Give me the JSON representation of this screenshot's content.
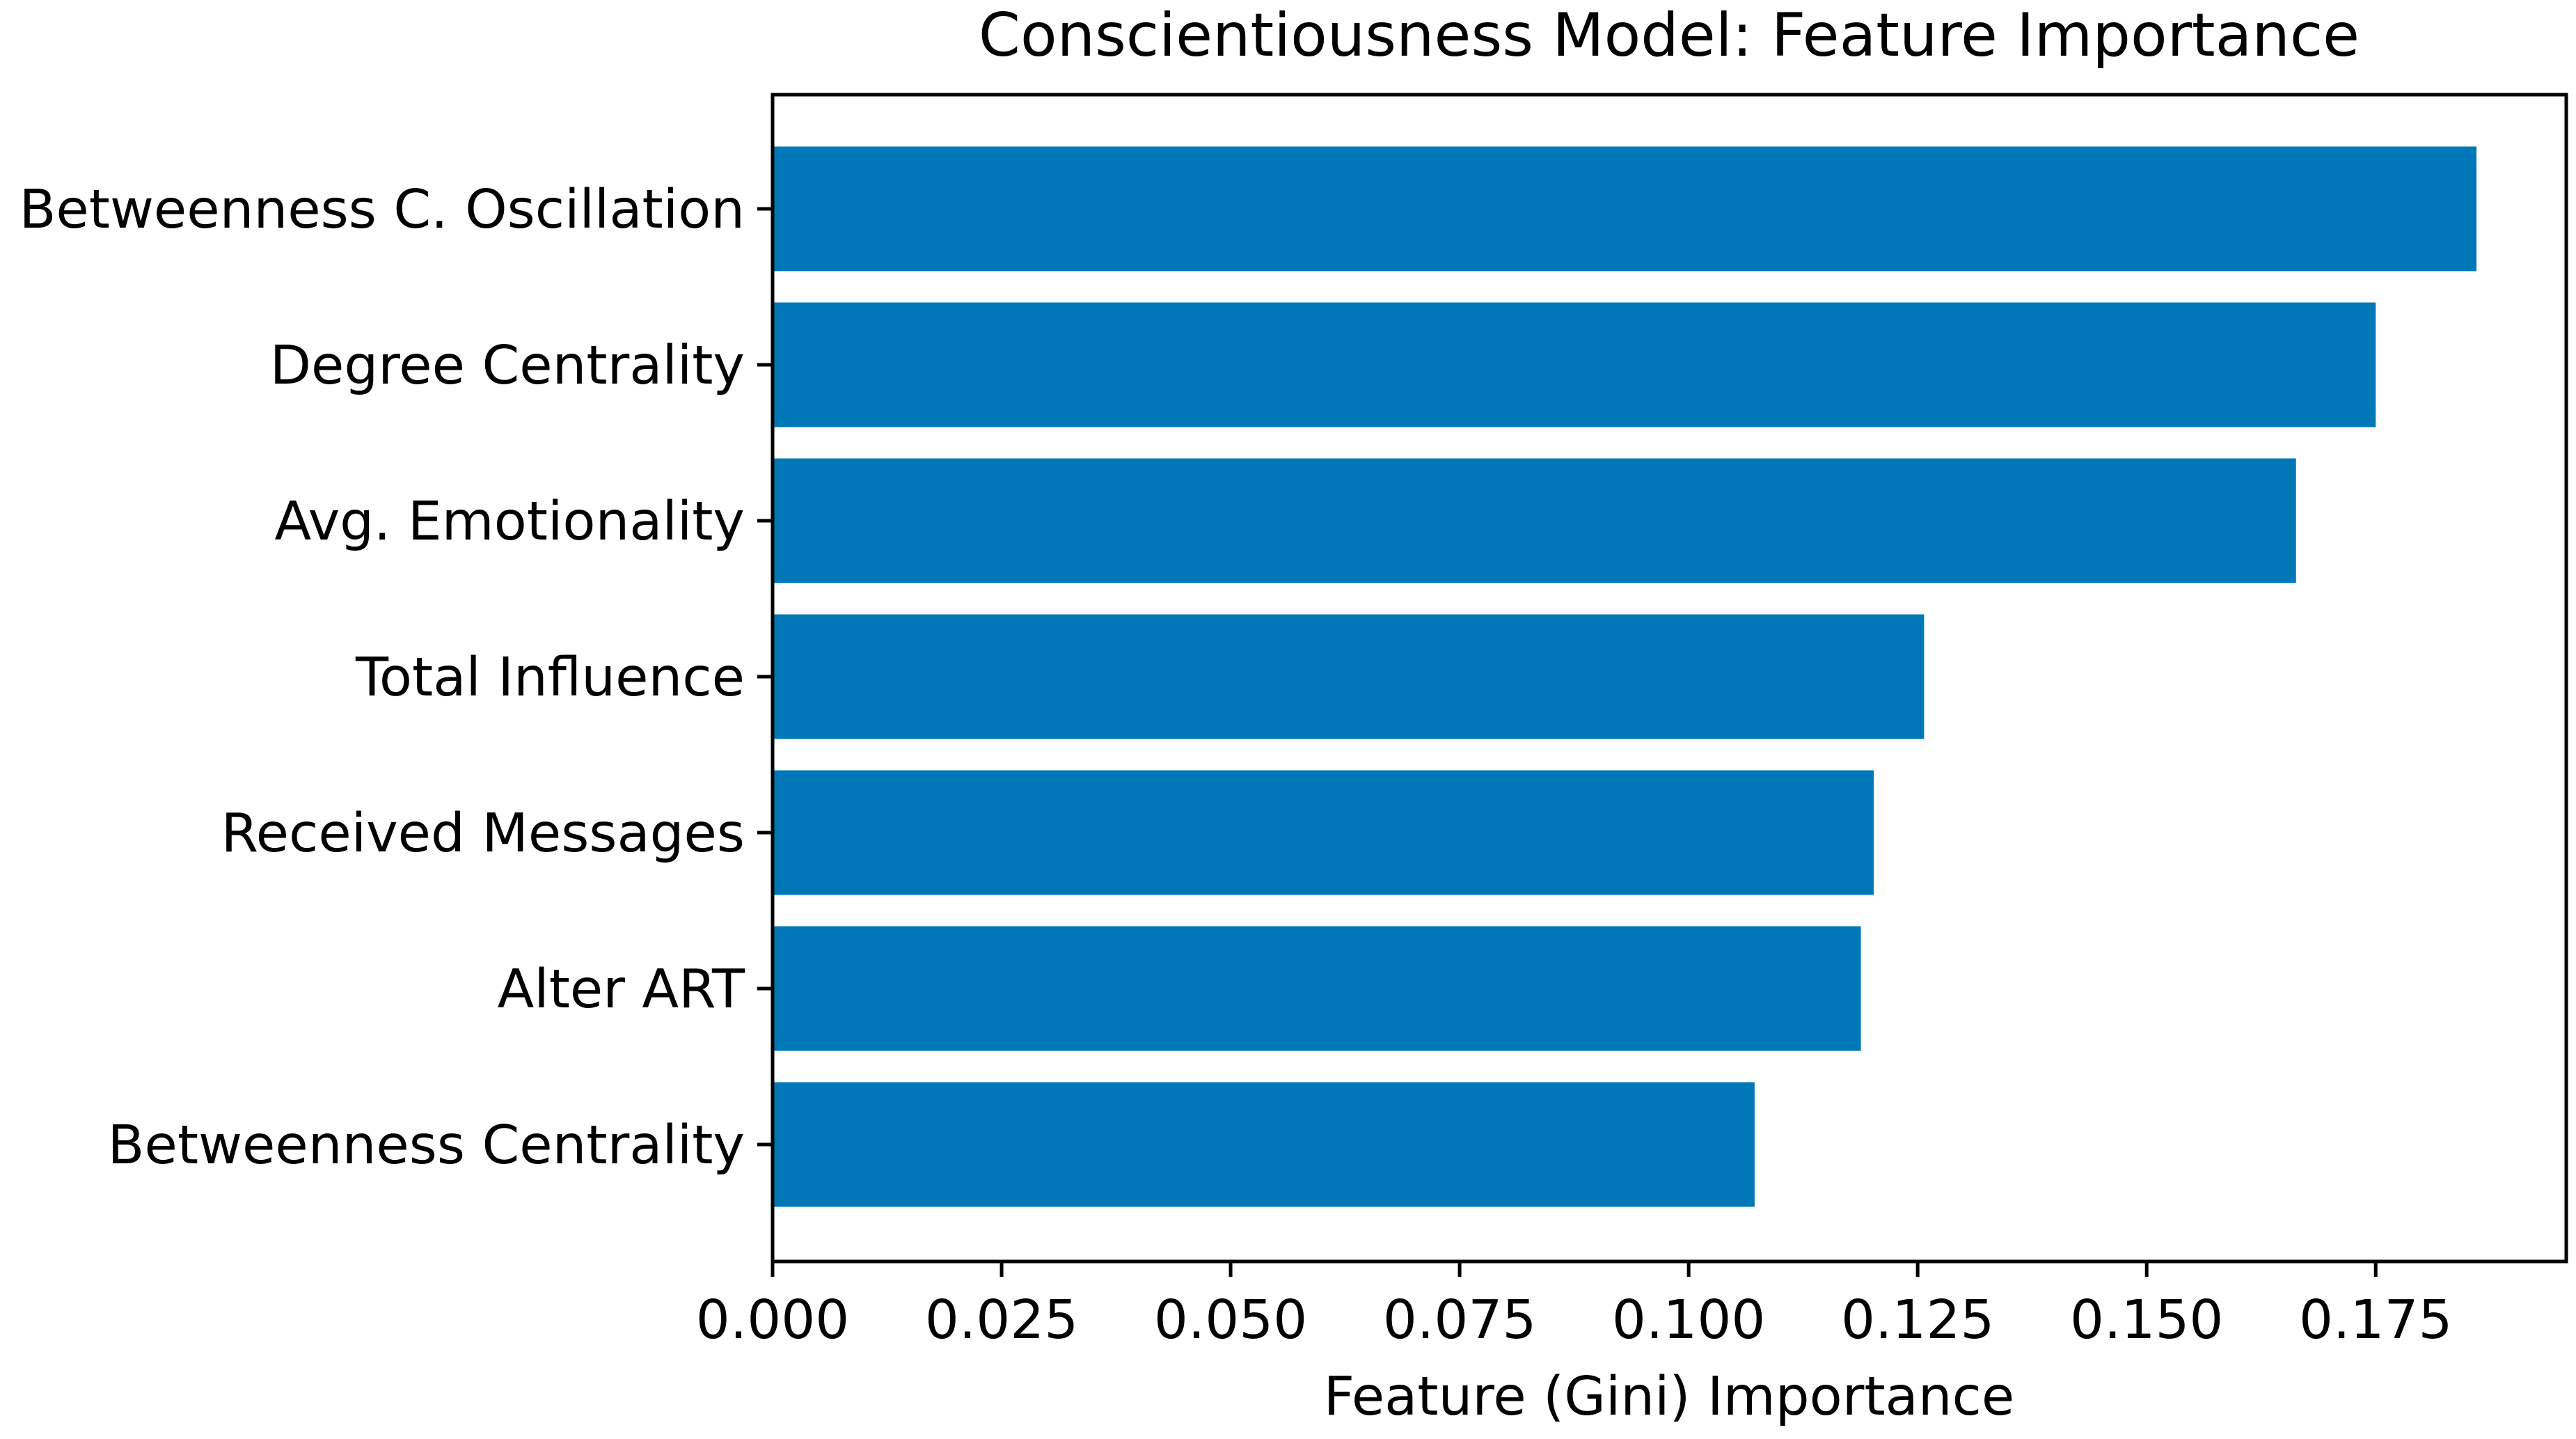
{
  "chart_data": {
    "type": "bar",
    "orientation": "horizontal",
    "title": "Conscientiousness Model: Feature Importance",
    "xlabel": "Feature (Gini) Importance",
    "ylabel": "",
    "categories": [
      "Betweenness C. Oscillation",
      "Degree Centrality",
      "Avg. Emotionality",
      "Total Influence",
      "Received Messages",
      "Alter ART",
      "Betweenness Centrality"
    ],
    "values": [
      0.186,
      0.175,
      0.1663,
      0.1257,
      0.1202,
      0.1188,
      0.1072
    ],
    "xlim": [
      0,
      0.1958
    ],
    "xticks": [
      "0.000",
      "0.025",
      "0.050",
      "0.075",
      "0.100",
      "0.125",
      "0.150",
      "0.175"
    ],
    "xtick_values": [
      0,
      0.025,
      0.05,
      0.075,
      0.1,
      0.125,
      0.15,
      0.175
    ],
    "bar_color": "#0077b6",
    "grid": false,
    "legend": "none"
  }
}
